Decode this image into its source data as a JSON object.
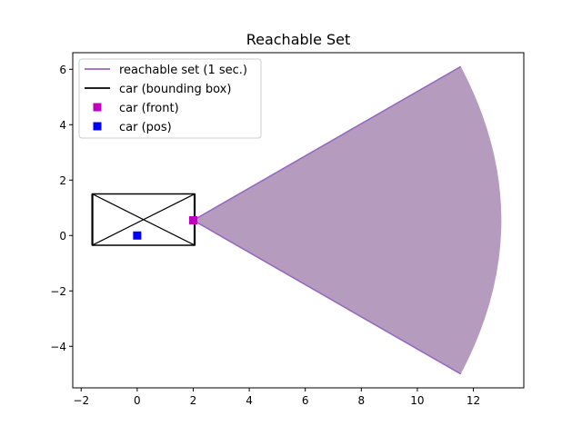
{
  "chart_data": {
    "type": "scatter",
    "title": "Reachable Set",
    "xlabel": "",
    "ylabel": "",
    "xlim": [
      -2.3,
      13.8
    ],
    "ylim": [
      -5.5,
      6.6
    ],
    "x_ticks": [
      -2,
      0,
      2,
      4,
      6,
      8,
      10,
      12
    ],
    "y_ticks": [
      -4,
      -2,
      0,
      2,
      4,
      6
    ],
    "grid": false,
    "legend_position": "top-left",
    "reachable_set": {
      "name": "reachable set (1 sec.)",
      "color": "#9467bd",
      "fill_color": "#b59bbd",
      "apex": [
        2.0,
        0.55
      ],
      "arc_start": [
        11.55,
        6.1
      ],
      "arc_mid": [
        13.0,
        0.55
      ],
      "arc_end": [
        11.55,
        -5.0
      ]
    },
    "bounding_box": {
      "name": "car (bounding box)",
      "color": "#000000",
      "corners": [
        [
          -1.6,
          1.5
        ],
        [
          2.05,
          1.5
        ],
        [
          2.05,
          -0.35
        ],
        [
          -1.6,
          -0.35
        ]
      ]
    },
    "front_point": {
      "name": "car (front)",
      "color": "#bf00bf",
      "x": 2.0,
      "y": 0.55
    },
    "pos_point": {
      "name": "car (pos)",
      "color": "#0000ff",
      "x": 0.0,
      "y": 0.0
    }
  }
}
